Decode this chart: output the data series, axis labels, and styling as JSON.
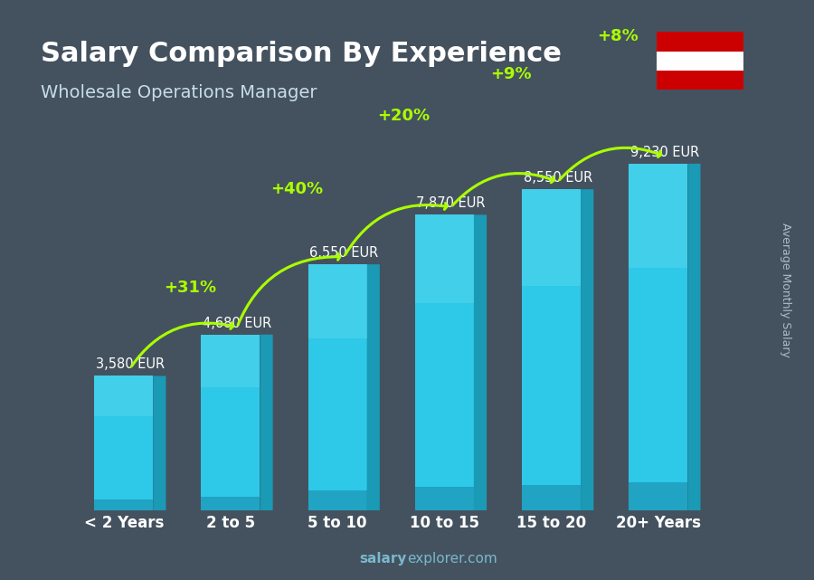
{
  "title": "Salary Comparison By Experience",
  "subtitle": "Wholesale Operations Manager",
  "categories": [
    "< 2 Years",
    "2 to 5",
    "5 to 10",
    "10 to 15",
    "15 to 20",
    "20+ Years"
  ],
  "values": [
    3580,
    4680,
    6550,
    7870,
    8550,
    9230
  ],
  "labels": [
    "3,580 EUR",
    "4,680 EUR",
    "6,550 EUR",
    "7,870 EUR",
    "8,550 EUR",
    "9,230 EUR"
  ],
  "pct_changes": [
    "+31%",
    "+40%",
    "+20%",
    "+9%",
    "+8%"
  ],
  "bar_color_top": "#00cfef",
  "bar_color_mid": "#00b0d0",
  "bar_color_bottom": "#0090b0",
  "bar_color_side": "#007a99",
  "bg_color": "#1a2a3a",
  "title_color": "#ffffff",
  "subtitle_color": "#ccddee",
  "label_color": "#ffffff",
  "pct_color": "#aaff00",
  "arrow_color": "#aaff00",
  "xlabel_color": "#ffffff",
  "watermark_text": "salaryexplorer.com",
  "watermark_bold": "salary",
  "watermark_normal": "explorer.com",
  "side_label": "Average Monthly Salary",
  "ylim": [
    0,
    10500
  ],
  "bar_width": 0.55
}
